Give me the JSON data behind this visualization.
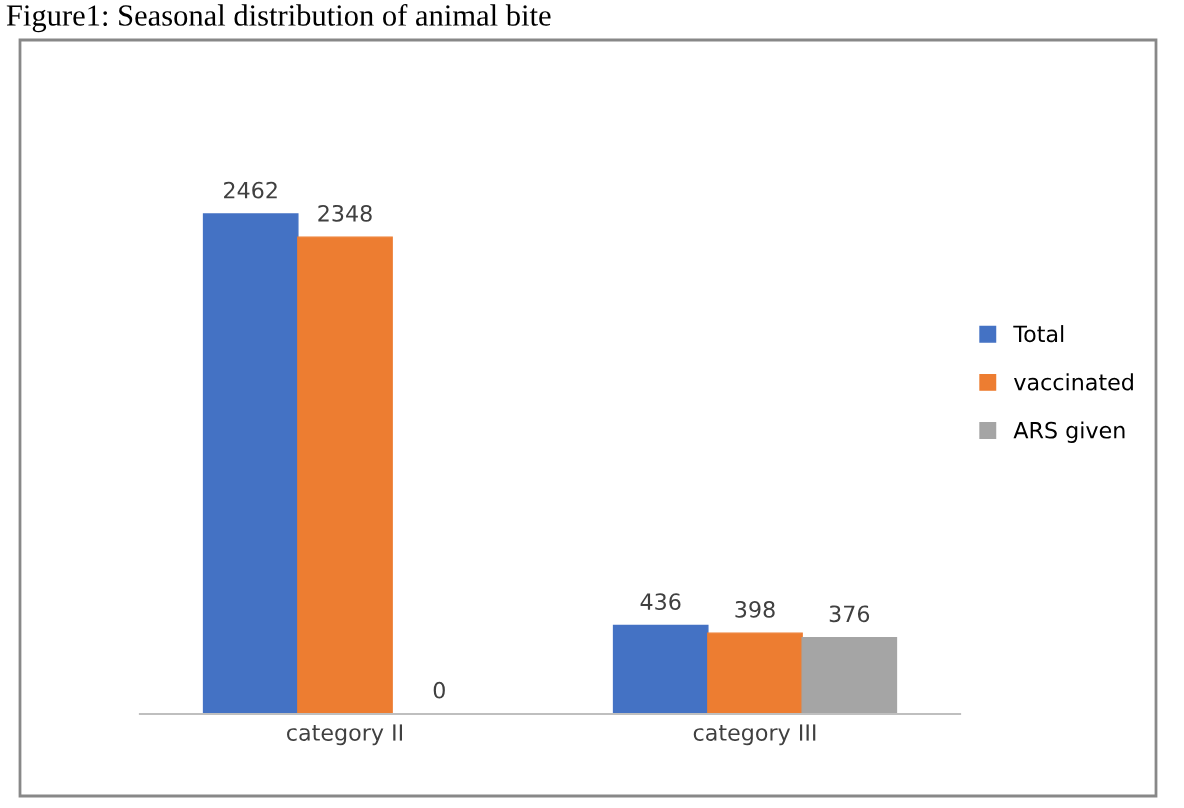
{
  "chart_data": {
    "type": "bar",
    "title": "Figure1: Seasonal distribution of animal bite",
    "categories": [
      "category II",
      "category III"
    ],
    "series": [
      {
        "name": "Total",
        "color": "#4472c4",
        "values": [
          2462,
          436
        ]
      },
      {
        "name": "vaccinated",
        "color": "#ed7d31",
        "values": [
          2348,
          398
        ]
      },
      {
        "name": "ARS given",
        "color": "#a5a5a5",
        "values": [
          0,
          376
        ]
      }
    ],
    "data_labels": true,
    "legend": "right"
  }
}
